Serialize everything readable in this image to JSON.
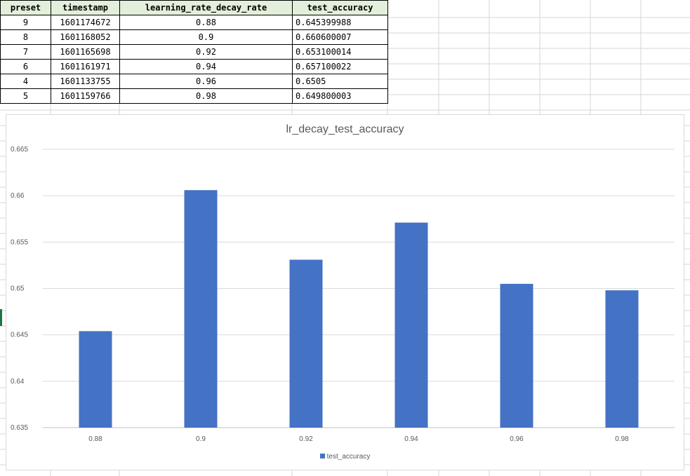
{
  "table": {
    "headers": [
      "preset",
      "timestamp",
      "learning_rate_decay_rate",
      "test_accuracy"
    ],
    "rows": [
      {
        "preset": "9",
        "timestamp": "1601174672",
        "lr": "0.88",
        "acc": "0.645399988"
      },
      {
        "preset": "8",
        "timestamp": "1601168052",
        "lr": "0.9",
        "acc": "0.660600007"
      },
      {
        "preset": "7",
        "timestamp": "1601165698",
        "lr": "0.92",
        "acc": "0.653100014"
      },
      {
        "preset": "6",
        "timestamp": "1601161971",
        "lr": "0.94",
        "acc": "0.657100022"
      },
      {
        "preset": "4",
        "timestamp": "1601133755",
        "lr": "0.96",
        "acc": "0.6505"
      },
      {
        "preset": "5",
        "timestamp": "1601159766",
        "lr": "0.98",
        "acc": "0.649800003"
      }
    ]
  },
  "chart_data": {
    "type": "bar",
    "title": "lr_decay_test_accuracy",
    "categories": [
      "0.88",
      "0.9",
      "0.92",
      "0.94",
      "0.96",
      "0.98"
    ],
    "series": [
      {
        "name": "test_accuracy",
        "values": [
          0.645399988,
          0.660600007,
          0.653100014,
          0.657100022,
          0.6505,
          0.649800003
        ],
        "color": "#4472c4"
      }
    ],
    "ylim": [
      0.635,
      0.665
    ],
    "yticks": [
      "0.635",
      "0.64",
      "0.645",
      "0.65",
      "0.655",
      "0.66",
      "0.665"
    ],
    "grid": true,
    "legend_position": "bottom"
  }
}
